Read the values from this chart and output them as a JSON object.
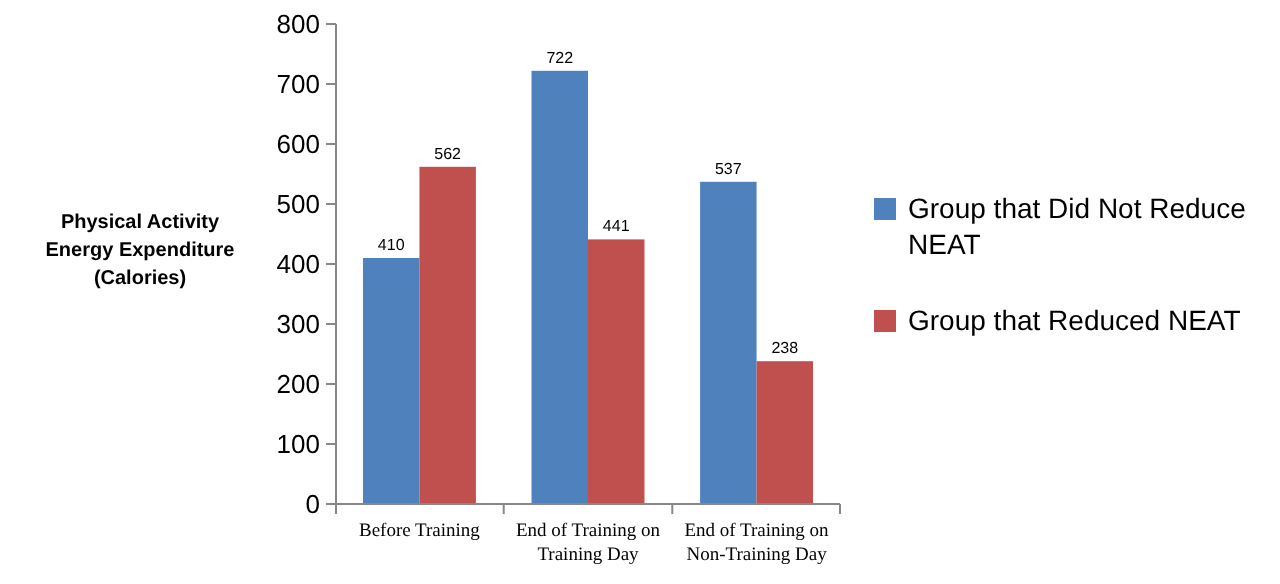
{
  "chart_data": {
    "type": "bar",
    "ylabel": "Physical Activity Energy Expenditure (Calories)",
    "categories": [
      "Before Training",
      "End of Training on Training Day",
      "End of Training on Non-Training Day"
    ],
    "series": [
      {
        "name": "Group that Did Not Reduce NEAT",
        "color": "#4f81bd",
        "values": [
          410,
          722,
          537
        ]
      },
      {
        "name": "Group that Reduced NEAT",
        "color": "#c0504d",
        "values": [
          562,
          441,
          238
        ]
      }
    ],
    "ylim": [
      0,
      800
    ],
    "yticks": [
      0,
      100,
      200,
      300,
      400,
      500,
      600,
      700,
      800
    ],
    "data_labels": true,
    "legend": "right",
    "grid": false
  }
}
